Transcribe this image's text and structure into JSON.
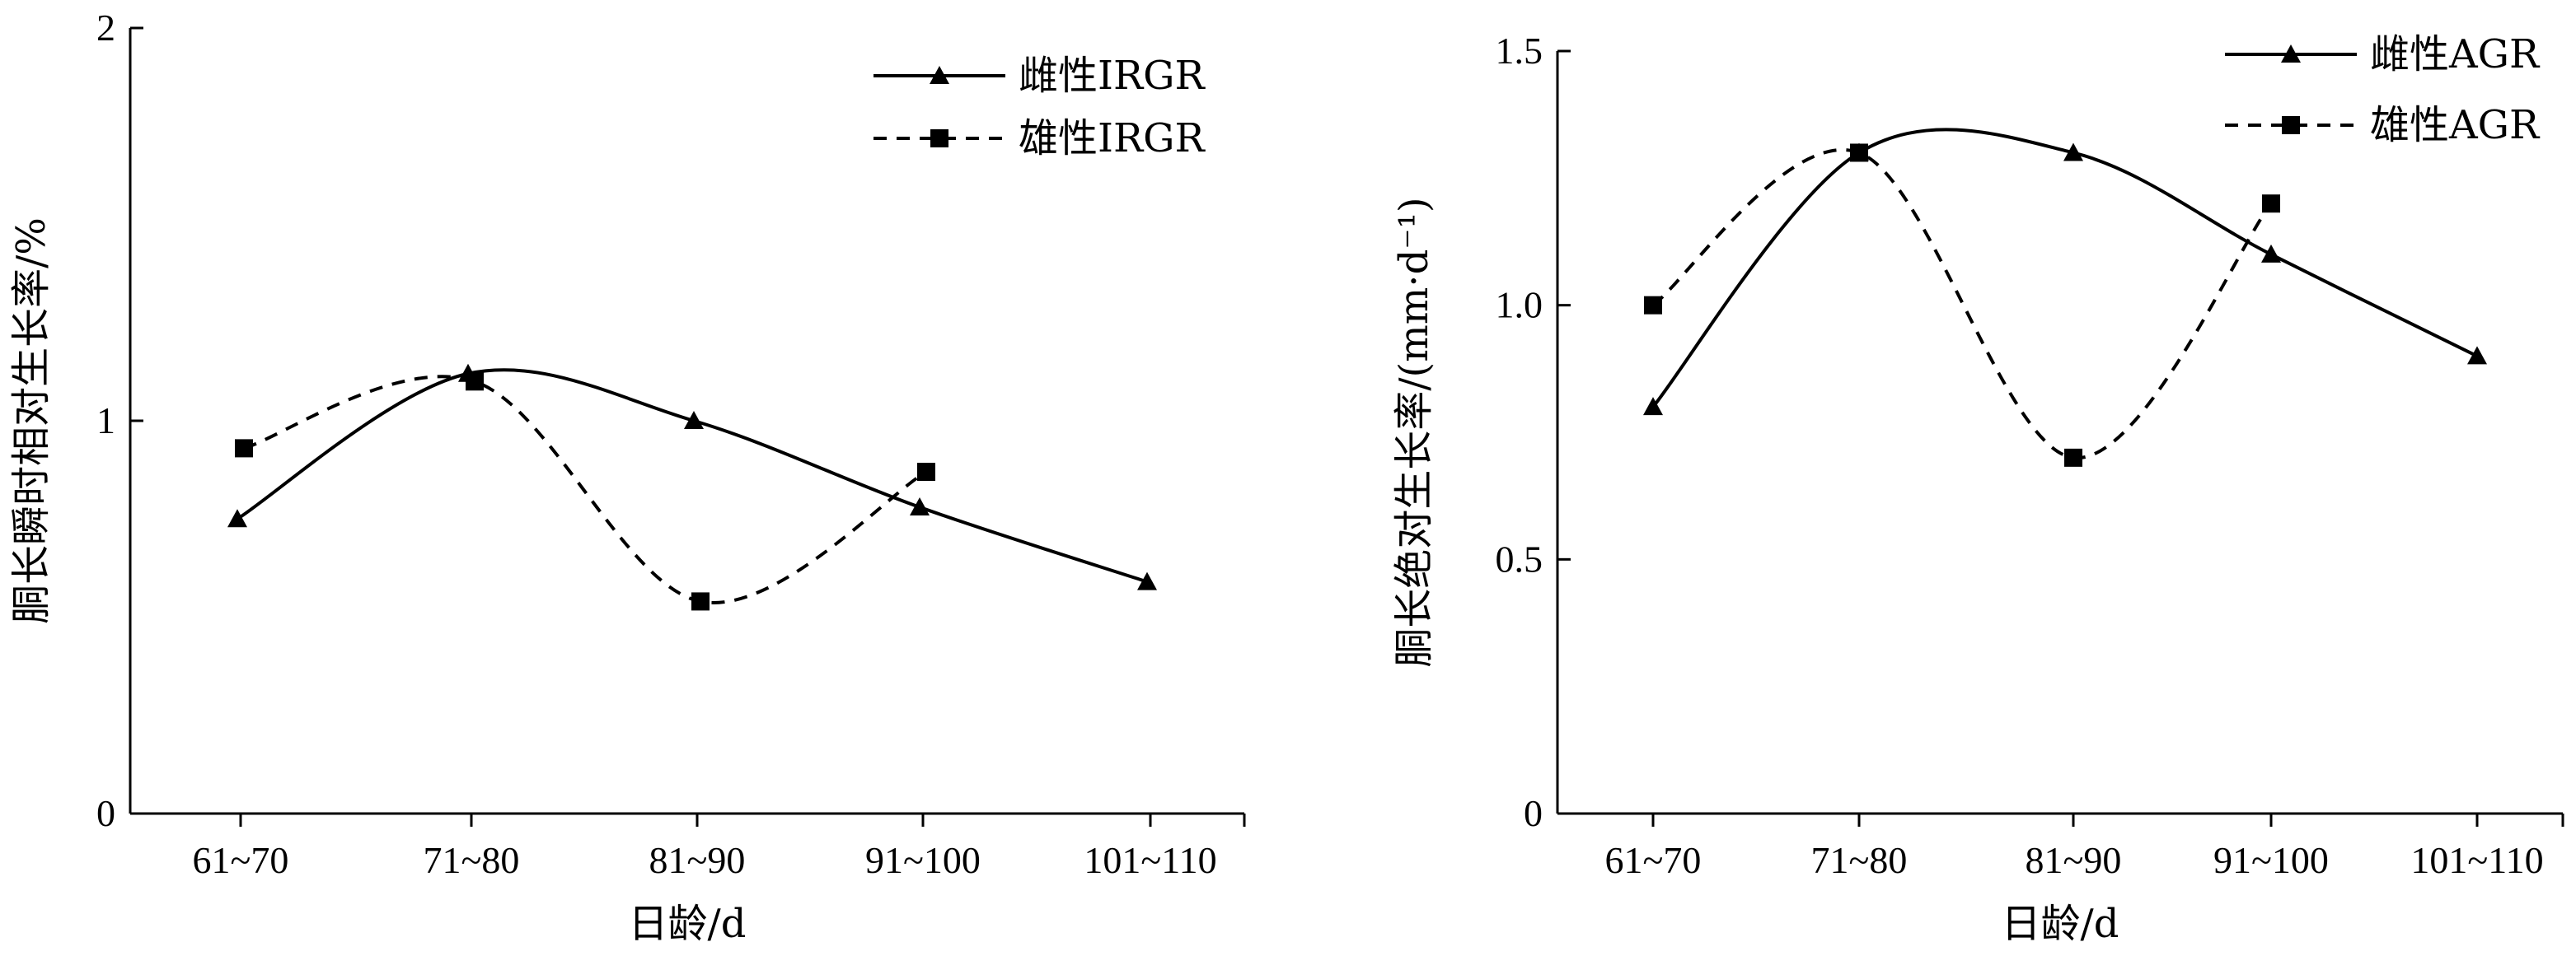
{
  "chart_data": [
    {
      "type": "line",
      "categories": [
        "61~70",
        "71~80",
        "81~90",
        "91~100",
        "101~110"
      ],
      "xlabel": "日龄/d",
      "ylabel": "胴长瞬时相对生长率/%",
      "ylim": [
        0,
        2
      ],
      "yticks": [
        "0",
        "1",
        "2"
      ],
      "grid": false,
      "legend_position": "top-right",
      "series": [
        {
          "name": "雌性IRGR",
          "marker": "triangle",
          "line_style": "solid",
          "values": [
            0.75,
            1.12,
            1.0,
            0.78,
            0.59
          ]
        },
        {
          "name": "雄性IRGR",
          "marker": "square",
          "line_style": "dashed",
          "values": [
            0.93,
            1.1,
            0.54,
            0.87,
            null
          ]
        }
      ]
    },
    {
      "type": "line",
      "categories": [
        "61~70",
        "71~80",
        "81~90",
        "91~100",
        "101~110"
      ],
      "xlabel": "日龄/d",
      "ylabel": "胴长绝对生长率/(mm·d⁻¹)",
      "ylim": [
        0,
        1.5
      ],
      "yticks": [
        "0",
        "0.5",
        "1.0",
        "1.5"
      ],
      "grid": false,
      "legend_position": "top-right",
      "series": [
        {
          "name": "雌性AGR",
          "marker": "triangle",
          "line_style": "solid",
          "values": [
            0.8,
            1.3,
            1.3,
            1.1,
            0.9
          ]
        },
        {
          "name": "雄性AGR",
          "marker": "square",
          "line_style": "dashed",
          "values": [
            1.0,
            1.3,
            0.7,
            1.2,
            null
          ]
        }
      ]
    }
  ]
}
